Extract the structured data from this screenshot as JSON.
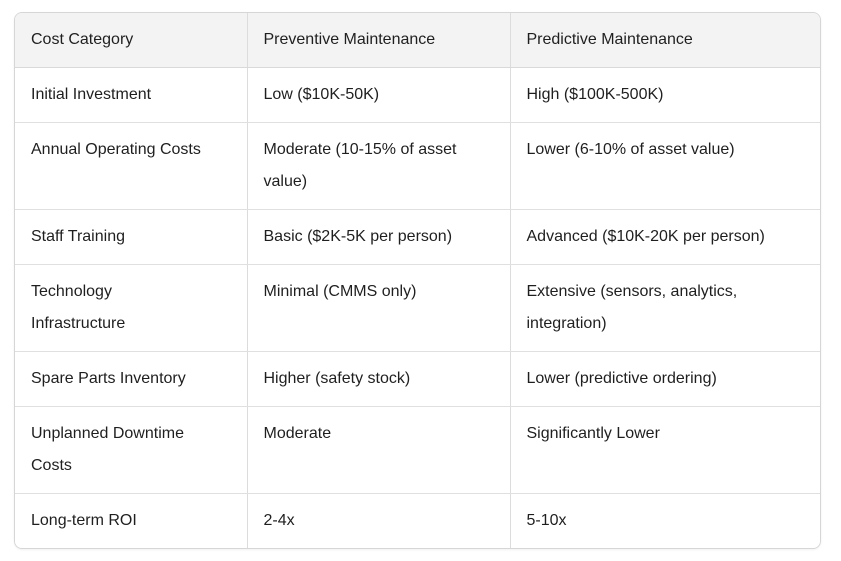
{
  "colors": {
    "header_background": "#f3f3f3",
    "border": "#dcdcdc",
    "text": "#1f1f1f",
    "page_background": "#ffffff"
  },
  "table": {
    "columns": [
      "Cost Category",
      "Preventive Maintenance",
      "Predictive Maintenance"
    ],
    "rows": [
      {
        "category": "Initial Investment",
        "preventive": "Low ($10K-50K)",
        "predictive": "High ($100K-500K)"
      },
      {
        "category": "Annual Operating Costs",
        "preventive": "Moderate (10-15% of asset\nvalue)",
        "predictive": "Lower (6-10% of asset value)"
      },
      {
        "category": "Staff Training",
        "preventive": "Basic ($2K-5K per person)",
        "predictive": "Advanced ($10K-20K per person)"
      },
      {
        "category": "Technology\nInfrastructure",
        "preventive": "Minimal (CMMS only)",
        "predictive": "Extensive (sensors, analytics,\nintegration)"
      },
      {
        "category": "Spare Parts Inventory",
        "preventive": "Higher (safety stock)",
        "predictive": "Lower (predictive ordering)"
      },
      {
        "category": "Unplanned Downtime\nCosts",
        "preventive": "Moderate",
        "predictive": "Significantly Lower"
      },
      {
        "category": "Long-term ROI",
        "preventive": "2-4x",
        "predictive": "5-10x"
      }
    ]
  }
}
